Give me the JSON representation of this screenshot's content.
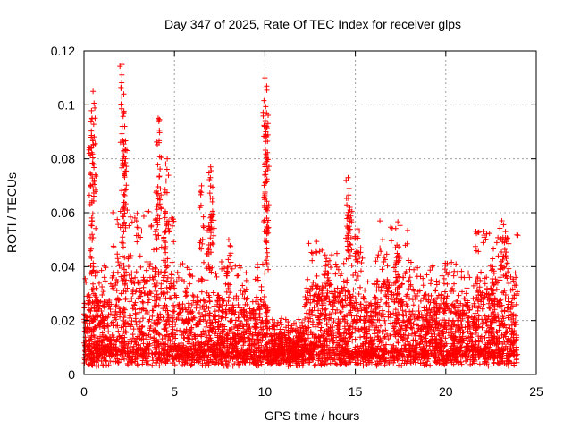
{
  "chart_data": {
    "type": "scatter",
    "title": "Day 347 of 2025, Rate Of TEC Index for receiver glps",
    "xlabel": "GPS time / hours",
    "ylabel": "ROTI / TECUs",
    "xlim": [
      0,
      25
    ],
    "ylim": [
      0,
      0.12
    ],
    "xticks": [
      0,
      5,
      10,
      15,
      20,
      25
    ],
    "yticks": [
      0,
      0.02,
      0.04,
      0.06,
      0.08,
      0.1,
      0.12
    ],
    "xtick_labels": [
      "0",
      "5",
      "10",
      "15",
      "20",
      "25"
    ],
    "ytick_labels": [
      "0",
      "0.02",
      "0.04",
      "0.06",
      "0.08",
      "0.1",
      "0.12"
    ],
    "grid": true,
    "marker": "+",
    "color": "#ff0000",
    "series": [
      {
        "name": "ROTI",
        "x_range": [
          0,
          24
        ],
        "baseline": 0.012,
        "spikes": [
          {
            "x": 0.5,
            "y": 0.105
          },
          {
            "x": 0.45,
            "y": 0.095
          },
          {
            "x": 0.4,
            "y": 0.088
          },
          {
            "x": 0.55,
            "y": 0.078
          },
          {
            "x": 0.45,
            "y": 0.057
          },
          {
            "x": 2.1,
            "y": 0.115
          },
          {
            "x": 2.2,
            "y": 0.104
          },
          {
            "x": 2.25,
            "y": 0.092
          },
          {
            "x": 2.3,
            "y": 0.08
          },
          {
            "x": 2.2,
            "y": 0.062
          },
          {
            "x": 4.1,
            "y": 0.095
          },
          {
            "x": 4.15,
            "y": 0.086
          },
          {
            "x": 4.6,
            "y": 0.08
          },
          {
            "x": 4.0,
            "y": 0.068
          },
          {
            "x": 4.5,
            "y": 0.06
          },
          {
            "x": 6.5,
            "y": 0.07
          },
          {
            "x": 7.0,
            "y": 0.077
          },
          {
            "x": 7.1,
            "y": 0.064
          },
          {
            "x": 6.9,
            "y": 0.055
          },
          {
            "x": 10.0,
            "y": 0.11
          },
          {
            "x": 10.1,
            "y": 0.107
          },
          {
            "x": 10.05,
            "y": 0.09
          },
          {
            "x": 10.1,
            "y": 0.079
          },
          {
            "x": 10.0,
            "y": 0.067
          },
          {
            "x": 10.1,
            "y": 0.058
          },
          {
            "x": 14.6,
            "y": 0.073
          },
          {
            "x": 14.65,
            "y": 0.069
          },
          {
            "x": 14.7,
            "y": 0.062
          },
          {
            "x": 15.1,
            "y": 0.054
          },
          {
            "x": 8.0,
            "y": 0.05
          },
          {
            "x": 23.1,
            "y": 0.057
          },
          {
            "x": 23.3,
            "y": 0.053
          },
          {
            "x": 22.6,
            "y": 0.04
          },
          {
            "x": 17.3,
            "y": 0.048
          },
          {
            "x": 13.4,
            "y": 0.043
          }
        ]
      }
    ]
  }
}
